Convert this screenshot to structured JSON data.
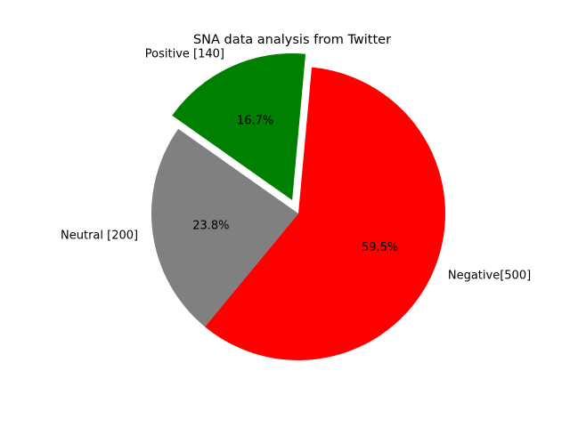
{
  "chart_data": {
    "type": "pie",
    "title": "SNA data analysis from Twitter",
    "slices": [
      {
        "label": "Negative[500]",
        "value": 500,
        "percent_label": "59.5%",
        "color": "#ff0000",
        "exploded": false
      },
      {
        "label": "Positive [140]",
        "value": 140,
        "percent_label": "16.7%",
        "color": "#008000",
        "exploded": true
      },
      {
        "label": "Neutral [200]",
        "value": 200,
        "percent_label": "23.8%",
        "color": "#808080",
        "exploded": false
      }
    ]
  }
}
